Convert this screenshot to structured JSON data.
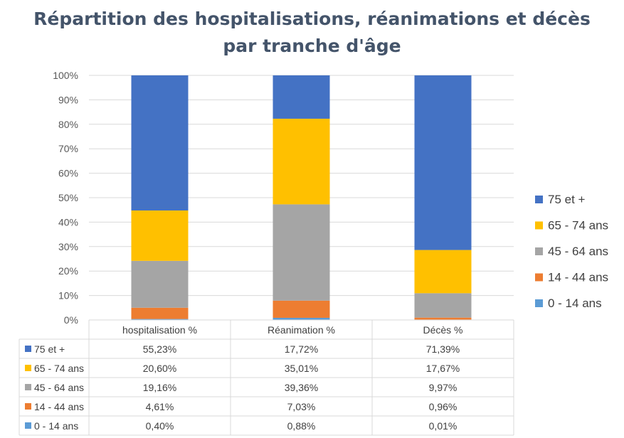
{
  "chart_data": {
    "type": "bar",
    "stacked": true,
    "percent_stacked": true,
    "title_line1": "Répartition des hospitalisations, réanimations et décès",
    "title_line2": "par tranche d'âge",
    "categories": [
      "hospitalisation %",
      "Réanimation %",
      "Décès %"
    ],
    "ylim": [
      0,
      100
    ],
    "yticks": [
      "0%",
      "10%",
      "20%",
      "30%",
      "40%",
      "50%",
      "60%",
      "70%",
      "80%",
      "90%",
      "100%"
    ],
    "legend_position": "right",
    "series": [
      {
        "name": "0 - 14 ans",
        "color": "#5b9bd5",
        "values": [
          0.4,
          0.88,
          0.01
        ],
        "labels": [
          "0,40%",
          "0,88%",
          "0,01%"
        ]
      },
      {
        "name": "14 - 44 ans",
        "color": "#ed7d31",
        "values": [
          4.61,
          7.03,
          0.96
        ],
        "labels": [
          "4,61%",
          "7,03%",
          "0,96%"
        ]
      },
      {
        "name": "45 - 64 ans",
        "color": "#a5a5a5",
        "values": [
          19.16,
          39.36,
          9.97
        ],
        "labels": [
          "19,16%",
          "39,36%",
          "9,97%"
        ]
      },
      {
        "name": "65 - 74 ans",
        "color": "#ffc000",
        "values": [
          20.6,
          35.01,
          17.67
        ],
        "labels": [
          "20,60%",
          "35,01%",
          "17,67%"
        ]
      },
      {
        "name": "75 et +",
        "color": "#4472c4",
        "values": [
          55.23,
          17.72,
          71.39
        ],
        "labels": [
          "55,23%",
          "17,72%",
          "71,39%"
        ]
      }
    ]
  }
}
